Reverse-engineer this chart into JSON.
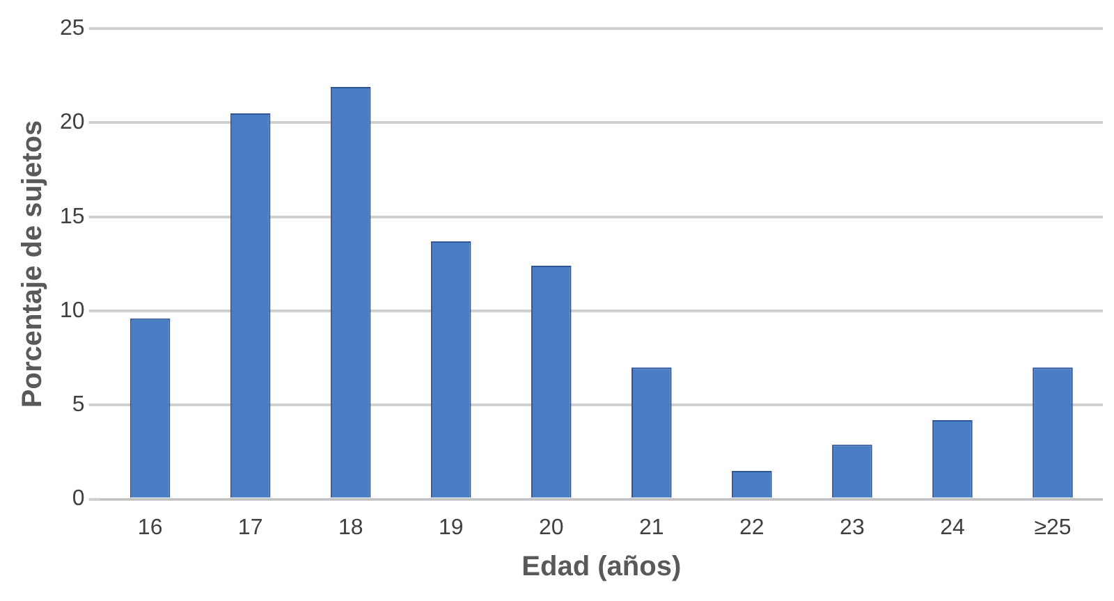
{
  "chart_data": {
    "type": "bar",
    "xlabel": "Edad (años)",
    "ylabel": "Porcentaje de sujetos",
    "categories": [
      "16",
      "17",
      "18",
      "19",
      "20",
      "21",
      "22",
      "23",
      "24",
      "≥25"
    ],
    "values": [
      9.6,
      20.5,
      21.9,
      13.7,
      12.4,
      7,
      1.5,
      2.9,
      4.2,
      7
    ],
    "color": "#4a7ec4",
    "ylim": [
      0,
      25
    ],
    "yticks": [
      0,
      5,
      10,
      15,
      20,
      25
    ],
    "grid": "y"
  }
}
